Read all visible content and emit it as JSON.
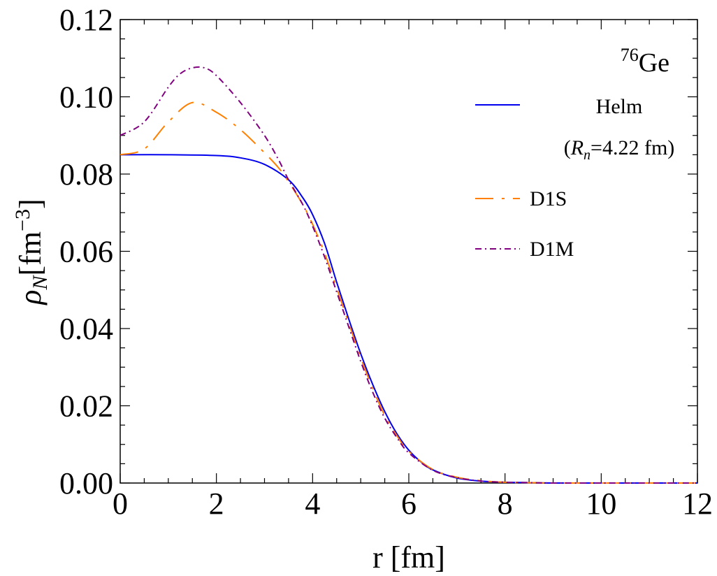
{
  "chart_data": {
    "type": "line",
    "xlabel": "r [fm]",
    "ylabel_symbol": "ρ",
    "ylabel_subscript": "N",
    "ylabel_units": "[fm",
    "ylabel_exponent": "−3",
    "ylabel_close": "]",
    "xlim": [
      0,
      12
    ],
    "ylim": [
      0,
      0.12
    ],
    "x_ticks": [
      0,
      2,
      4,
      6,
      8,
      10,
      12
    ],
    "x_tick_labels": [
      "0",
      "2",
      "4",
      "6",
      "8",
      "10",
      "12"
    ],
    "y_ticks": [
      0,
      0.02,
      0.04,
      0.06,
      0.08,
      0.1,
      0.12
    ],
    "y_tick_labels": [
      "0.00",
      "0.02",
      "0.04",
      "0.06",
      "0.08",
      "0.10",
      "0.12"
    ],
    "grid": false,
    "legend_position": "right",
    "annotation": {
      "mass_number": "76",
      "element": "Ge"
    },
    "series": [
      {
        "name": "Helm",
        "subtitle_open": "(",
        "subtitle_symbol": "R",
        "subtitle_subscript": "n",
        "subtitle_value": "=4.22 fm)",
        "color": "#0000ee",
        "style": "solid",
        "x": [
          0,
          1,
          2,
          2.5,
          3,
          3.5,
          3.8,
          4,
          4.25,
          4.5,
          4.75,
          5,
          5.25,
          5.5,
          5.75,
          6,
          6.25,
          6.5,
          7,
          7.5,
          8,
          8.5,
          9,
          10,
          12
        ],
        "y": [
          0.085,
          0.085,
          0.0848,
          0.0842,
          0.0825,
          0.0785,
          0.0738,
          0.0695,
          0.062,
          0.052,
          0.0425,
          0.0335,
          0.0255,
          0.0185,
          0.0128,
          0.0085,
          0.0055,
          0.0034,
          0.0013,
          0.0005,
          0.0002,
          0.0001,
          0,
          0,
          0
        ]
      },
      {
        "name": "D1S",
        "color": "#ff8000",
        "style": "dashed",
        "x": [
          0,
          0.5,
          1,
          1.5,
          2,
          2.5,
          3,
          3.3,
          3.5,
          3.8,
          4,
          4.25,
          4.5,
          4.75,
          5,
          5.25,
          5.5,
          5.75,
          6,
          6.5,
          7,
          7.5,
          8,
          8.5,
          9,
          10,
          12
        ],
        "y": [
          0.085,
          0.0865,
          0.0935,
          0.0985,
          0.096,
          0.0915,
          0.0855,
          0.0815,
          0.078,
          0.072,
          0.067,
          0.0595,
          0.0505,
          0.0415,
          0.0325,
          0.0245,
          0.0175,
          0.0123,
          0.0082,
          0.0035,
          0.0015,
          0.0006,
          0.0002,
          0.0001,
          0,
          0,
          0
        ]
      },
      {
        "name": "D1M",
        "color": "#800080",
        "style": "dashdot",
        "x": [
          0,
          0.5,
          1,
          1.25,
          1.5,
          1.75,
          2,
          2.5,
          3,
          3.3,
          3.5,
          3.8,
          4,
          4.25,
          4.5,
          4.75,
          5,
          5.25,
          5.5,
          5.75,
          6,
          6.5,
          7,
          7.5,
          8,
          8.5,
          9,
          10,
          12
        ],
        "y": [
          0.09,
          0.0935,
          0.1025,
          0.106,
          0.1075,
          0.1075,
          0.1055,
          0.0985,
          0.09,
          0.0835,
          0.0785,
          0.072,
          0.0665,
          0.0585,
          0.0495,
          0.0405,
          0.0315,
          0.0235,
          0.0168,
          0.0118,
          0.0078,
          0.0033,
          0.0014,
          0.0005,
          0.0002,
          0.0001,
          0,
          0,
          0
        ]
      }
    ]
  }
}
